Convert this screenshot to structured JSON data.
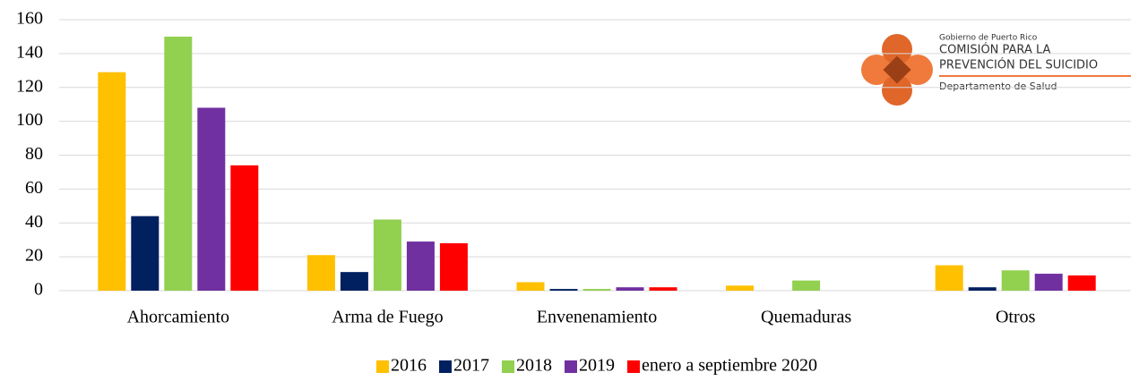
{
  "chart_data": {
    "type": "bar",
    "categories": [
      "Ahorcamiento",
      "Arma de Fuego",
      "Envenenamiento",
      "Quemaduras",
      "Otros"
    ],
    "series": [
      {
        "name": "2016",
        "color": "#FFC000",
        "values": [
          129,
          21,
          5,
          3,
          15
        ]
      },
      {
        "name": "2017",
        "color": "#002060",
        "values": [
          44,
          11,
          1,
          0,
          2
        ]
      },
      {
        "name": "2018",
        "color": "#92D050",
        "values": [
          150,
          42,
          1,
          6,
          12
        ]
      },
      {
        "name": "2019",
        "color": "#7030A0",
        "values": [
          108,
          29,
          2,
          0,
          10
        ]
      },
      {
        "name": "enero a septiembre 2020",
        "color": "#FF0000",
        "values": [
          74,
          28,
          2,
          0,
          9
        ]
      }
    ],
    "ylim": [
      0,
      160
    ],
    "yticks": [
      0,
      20,
      40,
      60,
      80,
      100,
      120,
      140,
      160
    ],
    "grid": true,
    "legend": "bottom"
  },
  "logo": {
    "line1": "Gobierno de Puerto Rico",
    "line2": "COMISIÓN PARA LA",
    "line3": "PREVENCIÓN DEL SUICIDIO",
    "line4": "Departamento de Salud"
  }
}
